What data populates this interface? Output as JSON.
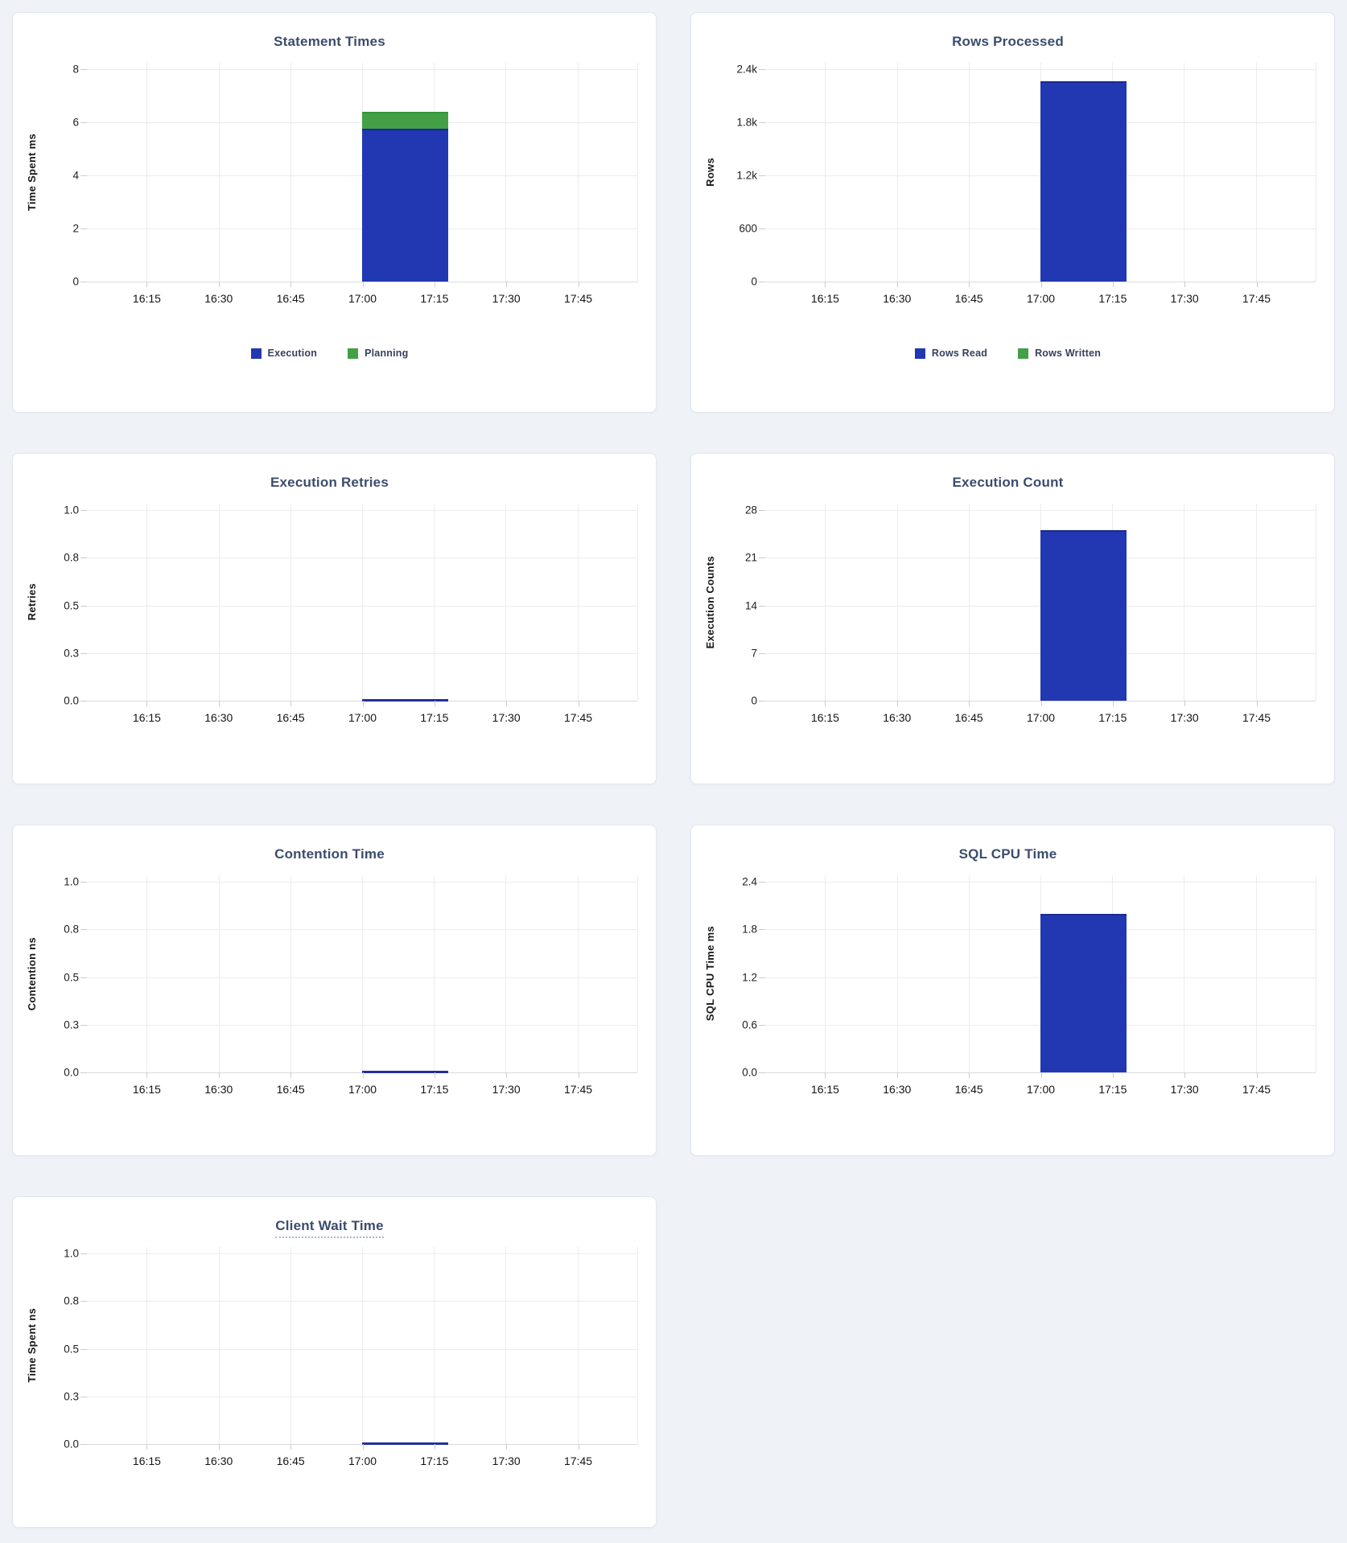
{
  "page": {
    "background": "#eff3f8",
    "panel_background": "#ffffff"
  },
  "colors": {
    "bar_blue": "#2237b2",
    "bar_blue_dark": "#1a2a92",
    "bar_green": "#43a047",
    "bar_green_dark": "#33953c",
    "zero_line": "#212f9e",
    "title_text": "#3b4c6e",
    "gridline": "#ececec"
  },
  "layout": {
    "x_domain_minutes": [
      962.5,
      1077.5
    ],
    "legend_position": "bottom-center",
    "grid": "on"
  },
  "chart_data": [
    {
      "id": "statement-times",
      "type": "bar",
      "title": "Statement Times",
      "ylabel": "Time Spent ms",
      "y_max": 8,
      "y_ticks": [
        "0",
        "2",
        "4",
        "6",
        "8"
      ],
      "x_ticks": [
        "16:15",
        "16:30",
        "16:45",
        "17:00",
        "17:15",
        "17:30",
        "17:45"
      ],
      "bar_window": {
        "start": "17:00",
        "end": "17:18"
      },
      "series": [
        {
          "label": "Execution",
          "value": 5.75,
          "color": "#2237b2",
          "color_dark": "#1a2a92"
        },
        {
          "label": "Planning",
          "value": 0.65,
          "color": "#43a047",
          "color_dark": "#33953c"
        }
      ],
      "legend": [
        {
          "label": "Execution",
          "color": "#2237b2"
        },
        {
          "label": "Planning",
          "color": "#43a047"
        }
      ]
    },
    {
      "id": "rows-processed",
      "type": "bar",
      "title": "Rows Processed",
      "ylabel": "Rows",
      "y_max": 2400,
      "y_ticks": [
        "0",
        "600",
        "1.2k",
        "1.8k",
        "2.4k"
      ],
      "x_ticks": [
        "16:15",
        "16:30",
        "16:45",
        "17:00",
        "17:15",
        "17:30",
        "17:45"
      ],
      "bar_window": {
        "start": "17:00",
        "end": "17:18"
      },
      "series": [
        {
          "label": "Rows Read",
          "value": 2260,
          "color": "#2237b2",
          "color_dark": "#1a2a92"
        },
        {
          "label": "Rows Written",
          "value": 0,
          "color": "#43a047",
          "color_dark": "#33953c"
        }
      ],
      "legend": [
        {
          "label": "Rows Read",
          "color": "#2237b2"
        },
        {
          "label": "Rows Written",
          "color": "#43a047"
        }
      ]
    },
    {
      "id": "execution-retries",
      "type": "bar",
      "title": "Execution Retries",
      "ylabel": "Retries",
      "y_max": 1,
      "y_ticks": [
        "0.0",
        "0.3",
        "0.5",
        "0.8",
        "1.0"
      ],
      "x_ticks": [
        "16:15",
        "16:30",
        "16:45",
        "17:00",
        "17:15",
        "17:30",
        "17:45"
      ],
      "bar_window": {
        "start": "17:00",
        "end": "17:18"
      },
      "series": [
        {
          "label": "",
          "value": 0,
          "color": "#2237b2",
          "color_dark": "#1a2a92"
        }
      ]
    },
    {
      "id": "execution-count",
      "type": "bar",
      "title": "Execution Count",
      "ylabel": "Execution Counts",
      "y_max": 28,
      "y_ticks": [
        "0",
        "7",
        "14",
        "21",
        "28"
      ],
      "x_ticks": [
        "16:15",
        "16:30",
        "16:45",
        "17:00",
        "17:15",
        "17:30",
        "17:45"
      ],
      "bar_window": {
        "start": "17:00",
        "end": "17:18"
      },
      "series": [
        {
          "label": "",
          "value": 25,
          "color": "#2237b2",
          "color_dark": "#1a2a92"
        }
      ]
    },
    {
      "id": "contention-time",
      "type": "bar",
      "title": "Contention Time",
      "ylabel": "Contention ns",
      "y_max": 1,
      "y_ticks": [
        "0.0",
        "0.3",
        "0.5",
        "0.8",
        "1.0"
      ],
      "x_ticks": [
        "16:15",
        "16:30",
        "16:45",
        "17:00",
        "17:15",
        "17:30",
        "17:45"
      ],
      "bar_window": {
        "start": "17:00",
        "end": "17:18"
      },
      "series": [
        {
          "label": "",
          "value": 0,
          "color": "#2237b2",
          "color_dark": "#1a2a92"
        }
      ]
    },
    {
      "id": "sql-cpu-time",
      "type": "bar",
      "title": "SQL CPU Time",
      "ylabel": "SQL CPU Time ms",
      "y_max": 2.4,
      "y_ticks": [
        "0.0",
        "0.6",
        "1.2",
        "1.8",
        "2.4"
      ],
      "x_ticks": [
        "16:15",
        "16:30",
        "16:45",
        "17:00",
        "17:15",
        "17:30",
        "17:45"
      ],
      "bar_window": {
        "start": "17:00",
        "end": "17:18"
      },
      "series": [
        {
          "label": "",
          "value": 2.0,
          "color": "#2237b2",
          "color_dark": "#1a2a92"
        }
      ]
    },
    {
      "id": "client-wait-time",
      "type": "bar",
      "title": "Client Wait Time",
      "ylabel": "Time Spent ns",
      "y_max": 1,
      "y_ticks": [
        "0.0",
        "0.3",
        "0.5",
        "0.8",
        "1.0"
      ],
      "x_ticks": [
        "16:15",
        "16:30",
        "16:45",
        "17:00",
        "17:15",
        "17:30",
        "17:45"
      ],
      "bar_window": {
        "start": "17:00",
        "end": "17:18"
      },
      "series": [
        {
          "label": "",
          "value": 0,
          "color": "#2237b2",
          "color_dark": "#1a2a92"
        }
      ],
      "underlined_title": true
    }
  ]
}
